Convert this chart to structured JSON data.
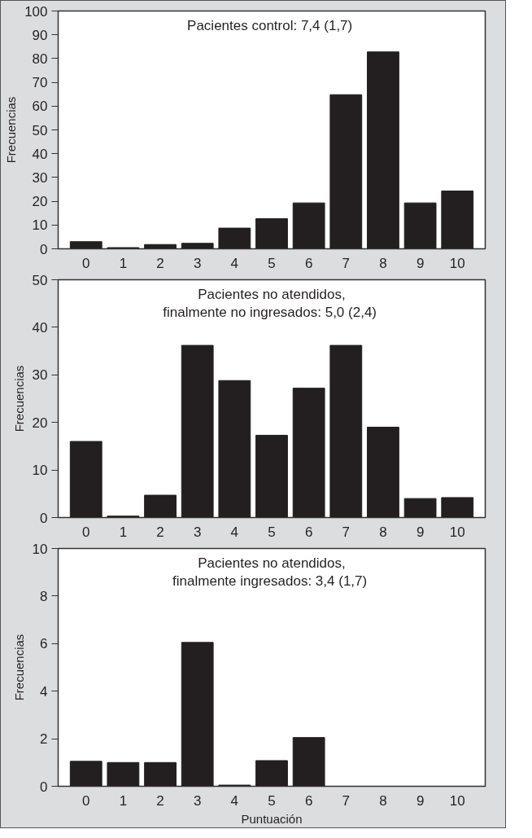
{
  "chart_data": [
    {
      "type": "bar",
      "categories": [
        "0",
        "1",
        "2",
        "3",
        "4",
        "5",
        "6",
        "7",
        "8",
        "9",
        "10"
      ],
      "values": [
        3,
        0.5,
        1.8,
        2.3,
        8.7,
        12.7,
        19.3,
        64.8,
        82.8,
        19.3,
        24.3
      ],
      "color": "#231f20",
      "ylim": [
        0,
        100
      ],
      "yticks": [
        0,
        10,
        20,
        30,
        40,
        50,
        60,
        70,
        80,
        90,
        100
      ],
      "ylabel": "Frecuencias",
      "annotations": [
        "Pacientes control: 7,4  (1,7)"
      ]
    },
    {
      "type": "bar",
      "categories": [
        "0",
        "1",
        "2",
        "3",
        "4",
        "5",
        "6",
        "7",
        "8",
        "9",
        "10"
      ],
      "values": [
        16,
        0.3,
        4.7,
        36.2,
        28.8,
        17.3,
        27.2,
        36.2,
        19,
        4,
        4.2
      ],
      "color": "#231f20",
      "ylim": [
        0,
        50
      ],
      "yticks": [
        0,
        10,
        20,
        30,
        40,
        50
      ],
      "ylabel": "Frecuencias",
      "annotations": [
        "Pacientes no atendidos,\nfinalmente no ingresados: 5,0  (2,4)"
      ]
    },
    {
      "type": "bar",
      "categories": [
        "0",
        "1",
        "2",
        "3",
        "4",
        "5",
        "6",
        "7",
        "8",
        "9",
        "10"
      ],
      "values": [
        1.05,
        1,
        1,
        6.05,
        0.05,
        1.08,
        2.05,
        0,
        0,
        0,
        0
      ],
      "color": "#231f20",
      "ylim": [
        0,
        10
      ],
      "yticks": [
        0,
        2,
        4,
        6,
        8,
        10
      ],
      "ylabel": "Frecuencias",
      "xlabel": "Puntuación",
      "annotations": [
        "Pacientes no atendidos,\nfinalmente ingresados: 3,4  (1,7)"
      ]
    }
  ]
}
